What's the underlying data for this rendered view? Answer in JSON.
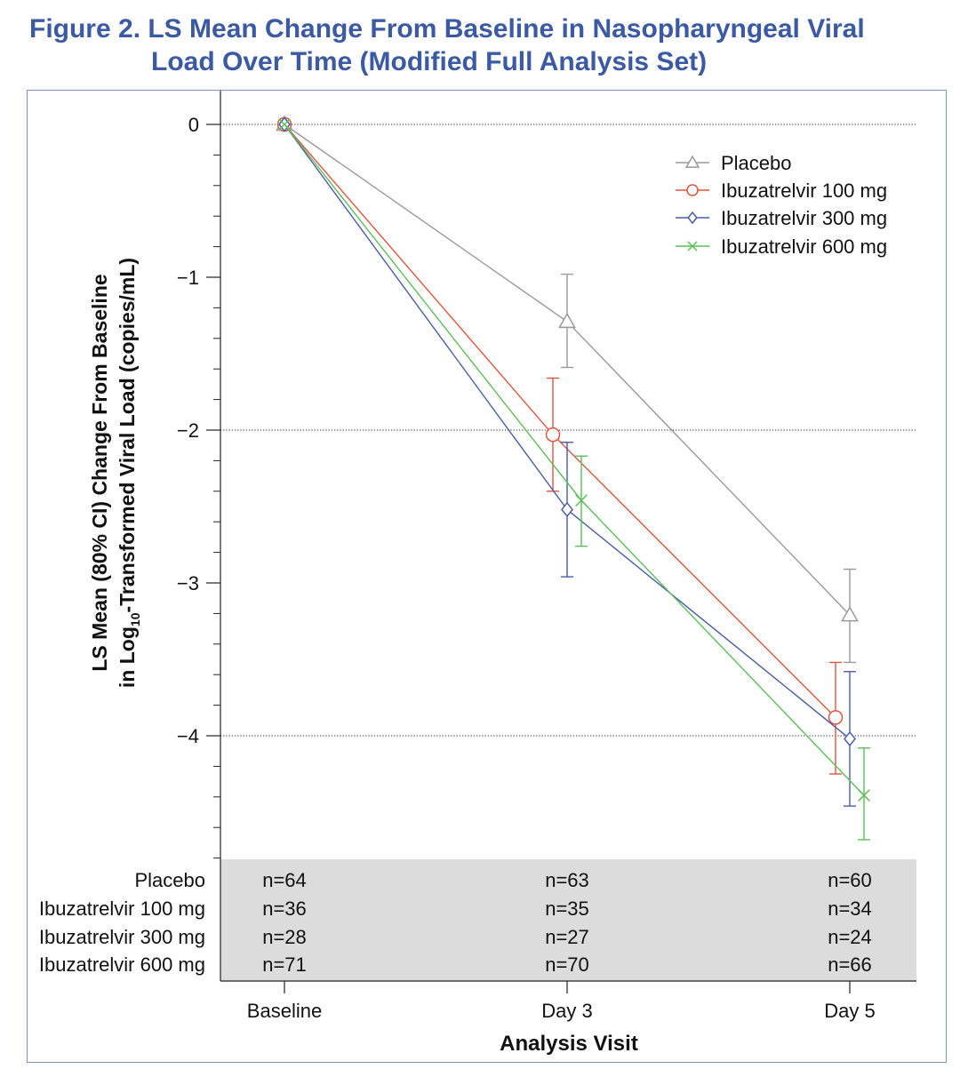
{
  "figure": {
    "title_line1": "Figure 2. LS Mean Change From Baseline in Nasopharyngeal Viral",
    "title_line2": "Load Over Time (Modified Full Analysis Set)"
  },
  "chart_data": {
    "type": "line",
    "title": "Figure 2. LS Mean Change From Baseline in Nasopharyngeal Viral Load Over Time (Modified Full Analysis Set)",
    "xlabel": "Analysis Visit",
    "ylabel_line1": "LS Mean (80% CI) Change From Baseline",
    "ylabel_line2_pre": "in Log",
    "ylabel_line2_sub": "10",
    "ylabel_line2_post": "-Transformed Viral Load (copies/mL)",
    "categories": [
      "Baseline",
      "Day 3",
      "Day 5"
    ],
    "ylim": [
      -4.8,
      0.15
    ],
    "yticks": [
      0,
      -1,
      -2,
      -3,
      -4
    ],
    "ytick_labels": [
      "0",
      "−1",
      "−2",
      "−3",
      "−4"
    ],
    "reference_lines": [
      0,
      -2,
      -4
    ],
    "legend_position": "top-right",
    "series": [
      {
        "name": "Placebo",
        "color": "#9a9a9a",
        "marker": "triangle",
        "values": [
          0,
          -1.29,
          -3.21
        ],
        "ci_low": [
          0,
          -1.59,
          -3.52
        ],
        "ci_high": [
          0,
          -0.98,
          -2.91
        ],
        "n": [
          "n=64",
          "n=63",
          "n=60"
        ]
      },
      {
        "name": "Ibuzatrelvir 100 mg",
        "color": "#e0553f",
        "marker": "circle",
        "values": [
          0,
          -2.03,
          -3.88
        ],
        "ci_low": [
          0,
          -2.4,
          -4.25
        ],
        "ci_high": [
          0,
          -1.66,
          -3.52
        ],
        "n": [
          "n=36",
          "n=35",
          "n=34"
        ]
      },
      {
        "name": "Ibuzatrelvir 300 mg",
        "color": "#4a5ca8",
        "marker": "diamond",
        "values": [
          0,
          -2.52,
          -4.02
        ],
        "ci_low": [
          0,
          -2.96,
          -4.46
        ],
        "ci_high": [
          0,
          -2.08,
          -3.58
        ],
        "n": [
          "n=28",
          "n=27",
          "n=24"
        ]
      },
      {
        "name": "Ibuzatrelvir 600 mg",
        "color": "#5cbf5a",
        "marker": "x",
        "values": [
          0,
          -2.46,
          -4.39
        ],
        "ci_low": [
          0,
          -2.76,
          -4.68
        ],
        "ci_high": [
          0,
          -2.17,
          -4.08
        ],
        "n": [
          "n=71",
          "n=70",
          "n=66"
        ]
      }
    ]
  },
  "colors": {
    "title": "#3b5aa3",
    "frame": "#7f93c2",
    "table_band": "#dcdcdc"
  }
}
